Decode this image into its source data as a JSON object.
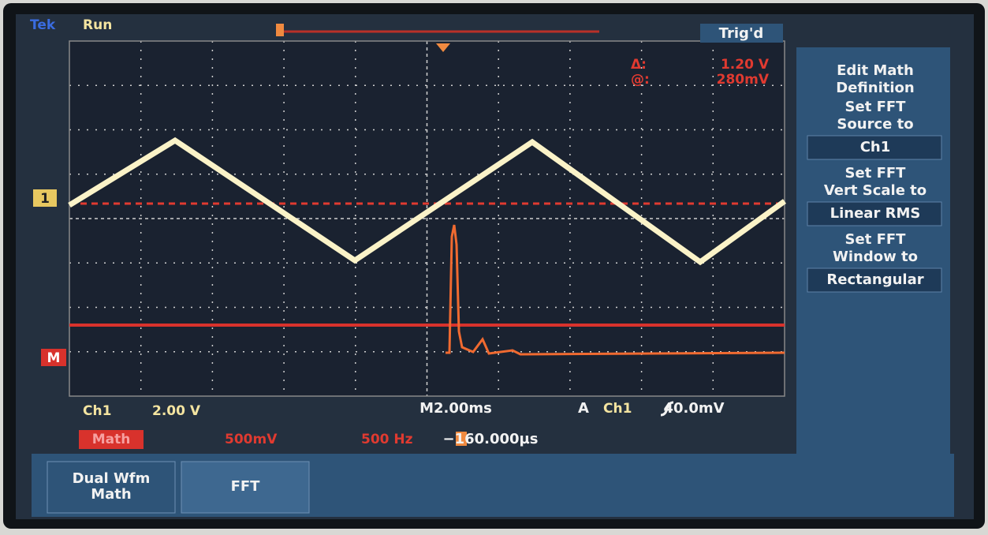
{
  "header": {
    "brand": "Tek",
    "status": "Run",
    "trigger_state": "Trig'd"
  },
  "cursor": {
    "delta_label": "Δ:",
    "delta_value": "1.20 V",
    "at_label": "@:",
    "at_value": "280mV"
  },
  "markers": {
    "ch1": "1",
    "math": "M"
  },
  "menu": [
    {
      "lines": [
        "Edit Math",
        "Definition"
      ]
    },
    {
      "lines": [
        "Set FFT",
        "Source to"
      ],
      "option": "Ch1"
    },
    {
      "lines": [
        "Set FFT",
        "Vert Scale to"
      ],
      "option": "Linear RMS"
    },
    {
      "lines": [
        "Set FFT",
        "Window to"
      ],
      "option": "Rectangular"
    }
  ],
  "readout": {
    "ch1_label": "Ch1",
    "ch1_scale": "2.00 V",
    "timebase": "M2.00ms",
    "trigger_mode": "A",
    "trigger_source": "Ch1",
    "trigger_level": "40.0mV",
    "math_label": "Math",
    "math_scale": "500mV",
    "math_freq": "500 Hz",
    "position": "−160.000µs"
  },
  "buttons": [
    {
      "lines": [
        "Dual Wfm",
        "Math"
      ]
    },
    {
      "lines": [
        "FFT"
      ]
    }
  ]
}
